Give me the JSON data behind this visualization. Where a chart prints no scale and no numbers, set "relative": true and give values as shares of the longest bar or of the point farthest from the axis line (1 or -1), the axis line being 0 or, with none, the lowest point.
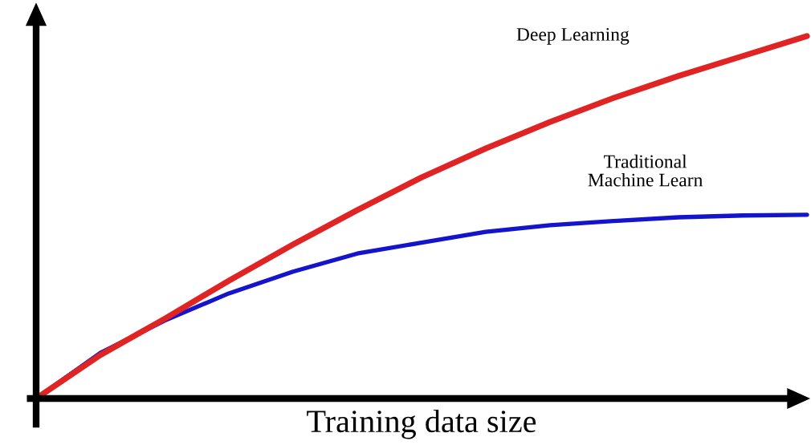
{
  "chart_data": {
    "type": "line",
    "relative": true,
    "tick_labels": false,
    "xlabel": "Training data size",
    "categories": [
      null,
      null,
      null,
      null,
      null,
      null,
      null,
      null,
      null,
      null,
      null,
      null,
      null
    ],
    "series": [
      {
        "name": "Deep Learning",
        "color": "#e02424",
        "values": [
          0,
          0.12,
          0.22,
          0.325,
          0.425,
          0.52,
          0.61,
          0.69,
          0.763,
          0.83,
          0.89,
          0.945,
          1.0
        ]
      },
      {
        "name": "Traditional\nMachine Learn",
        "color": "#1414cc",
        "values": [
          0,
          0.126,
          0.215,
          0.29,
          0.35,
          0.4,
          0.43,
          0.46,
          0.478,
          0.49,
          0.5,
          0.505,
          0.507
        ]
      }
    ]
  }
}
